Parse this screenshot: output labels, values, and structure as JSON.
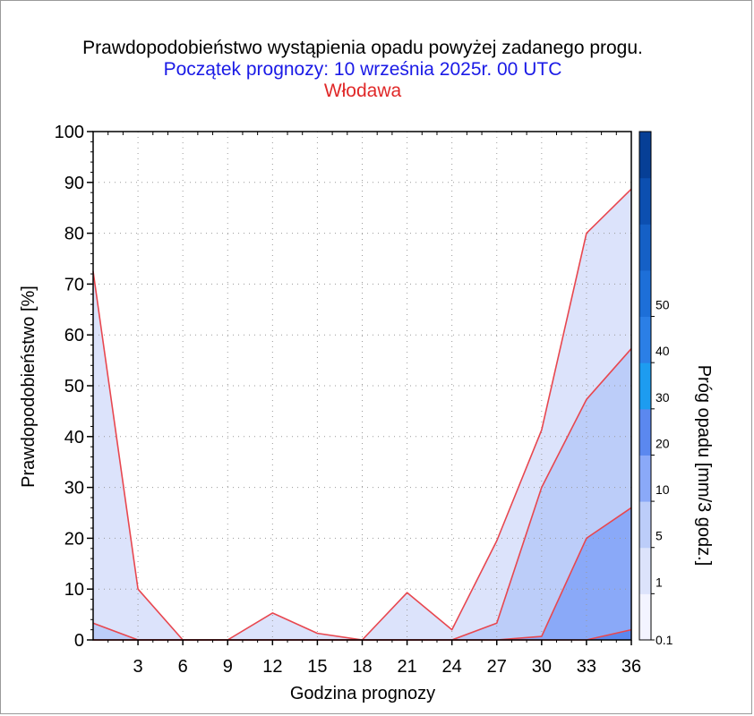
{
  "chart_data": {
    "type": "area",
    "title": "Prawdopodobieństwo wystąpienia opadu powyżej zadanego progu.",
    "subtitle": "Początek prognozy: 10 września 2025r. 00 UTC",
    "location": "Włodawa",
    "xlabel": "Godzina prognozy",
    "ylabel": "Prawdopodobieństwo [%]",
    "x": [
      0,
      3,
      6,
      9,
      12,
      15,
      18,
      21,
      24,
      27,
      30,
      33,
      36
    ],
    "xlim": [
      0,
      36
    ],
    "ylim": [
      0,
      100
    ],
    "xticks": [
      3,
      6,
      9,
      12,
      15,
      18,
      21,
      24,
      27,
      30,
      33,
      36
    ],
    "yticks": [
      0,
      10,
      20,
      30,
      40,
      50,
      60,
      70,
      80,
      90,
      100
    ],
    "grid": true,
    "series": [
      {
        "threshold": "0.1",
        "color": "#dce3fb",
        "values": [
          72.5,
          10,
          0,
          0,
          5.3,
          1.3,
          0,
          9.3,
          2,
          19.5,
          41.3,
          80,
          88.7
        ]
      },
      {
        "threshold": "1",
        "color": "#bccdf9",
        "values": [
          3.3,
          0,
          0,
          0,
          0,
          0,
          0,
          0,
          0,
          3.3,
          30,
          47.3,
          57.3
        ]
      },
      {
        "threshold": "5",
        "color": "#8aa9f8",
        "values": [
          0,
          0,
          0,
          0,
          0,
          0,
          0,
          0,
          0,
          0,
          0.7,
          20,
          26
        ]
      },
      {
        "threshold": "10",
        "color": "#5b88ef",
        "values": [
          0,
          0,
          0,
          0,
          0,
          0,
          0,
          0,
          0,
          0,
          0,
          0,
          2
        ]
      }
    ],
    "colorbar": {
      "label": "Próg opadu [mm/3 godz.]",
      "ticks": [
        "0.1",
        "1",
        "5",
        "10",
        "20",
        "30",
        "40",
        "50"
      ],
      "colors": [
        "#f3f4ff",
        "#dce3fb",
        "#bccdf9",
        "#8aa9f8",
        "#5b88ef",
        "#1d9cf0",
        "#2b7fe6",
        "#1d6fd8",
        "#1560c6",
        "#0c4fb0",
        "#063f96"
      ]
    }
  }
}
